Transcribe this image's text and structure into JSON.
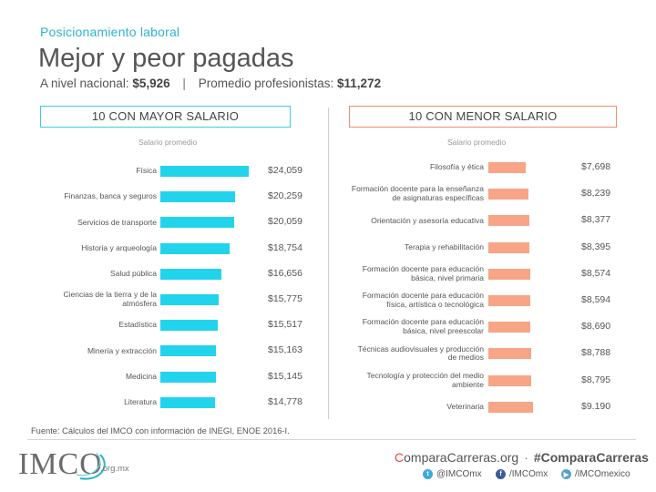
{
  "header": {
    "kicker": "Posicionamiento laboral",
    "title": "Mejor y peor pagadas",
    "subtitle_national_label": "A nivel nacional:",
    "subtitle_national_value": "$5,926",
    "subtitle_separator": "|",
    "subtitle_prof_label": "Promedio profesionistas:",
    "subtitle_prof_value": "$11,272"
  },
  "colors": {
    "accent_cyan": "#22d3ec",
    "accent_salmon": "#f7a487",
    "kicker": "#2cb5c9",
    "brand_red": "#e8464a"
  },
  "chart_data": [
    {
      "type": "bar",
      "orientation": "horizontal",
      "title": "10 CON MAYOR SALARIO",
      "xlabel": "Salario promedio",
      "xlim": [
        0,
        24059
      ],
      "categories": [
        "Física",
        "Finanzas, banca y seguros",
        "Servicios de transporte",
        "Historia y arqueología",
        "Salud pública",
        "Ciencias de la tierra y de la atmósfera",
        "Estadística",
        "Minería y extracción",
        "Medicina",
        "Literatura"
      ],
      "values": [
        24059,
        20259,
        20059,
        18754,
        16656,
        15775,
        15517,
        15163,
        15145,
        14778
      ],
      "value_labels": [
        "$24,059",
        "$20,259",
        "$20,059",
        "$18,754",
        "$16,656",
        "$15,775",
        "$15,517",
        "$15,163",
        "$15,145",
        "$14,778"
      ],
      "color": "#22d3ec"
    },
    {
      "type": "bar",
      "orientation": "horizontal",
      "title": "10 CON MENOR SALARIO",
      "xlabel": "Salario promedio",
      "xlim": [
        0,
        24059
      ],
      "categories": [
        "Filosofía y ética",
        "Formación docente para la enseñanza de asignaturas específicas",
        "Orientación y asesoría educativa",
        "Terapia y rehabilitación",
        "Formación docente para educación básica, nivel primaria",
        "Formación docente para educación física, artística o tecnológica",
        "Formación docente para educación básica, nivel preescolar",
        "Técnicas audiovisuales y producción de medios",
        "Tecnología y protección del medio ambiente",
        "Veterinaria"
      ],
      "values": [
        7698,
        8239,
        8377,
        8395,
        8574,
        8594,
        8690,
        8788,
        8795,
        9190
      ],
      "value_labels": [
        "$7,698",
        "$8,239",
        "$8,377",
        "$8,395",
        "$8,574",
        "$8,594",
        "$8,690",
        "$8,788",
        "$8,795",
        "$9.190"
      ],
      "color": "#f7a487"
    }
  ],
  "footer": {
    "source": "Fuente: Cálculos del IMCO con información de INEGI, ENOE 2016-I.",
    "logo_text": "IMCO",
    "logo_domain": ".org.mx",
    "site": "ComparaCarreras.org",
    "site_highlight": "C",
    "dot": "·",
    "hashtag": "#ComparaCarreras",
    "twitter": "@IMCOmx",
    "facebook": "/IMCOmx",
    "youtube": "/IMCOmexico",
    "twitter_icon": "twitter-icon",
    "facebook_icon": "facebook-icon",
    "youtube_icon": "youtube-icon"
  }
}
